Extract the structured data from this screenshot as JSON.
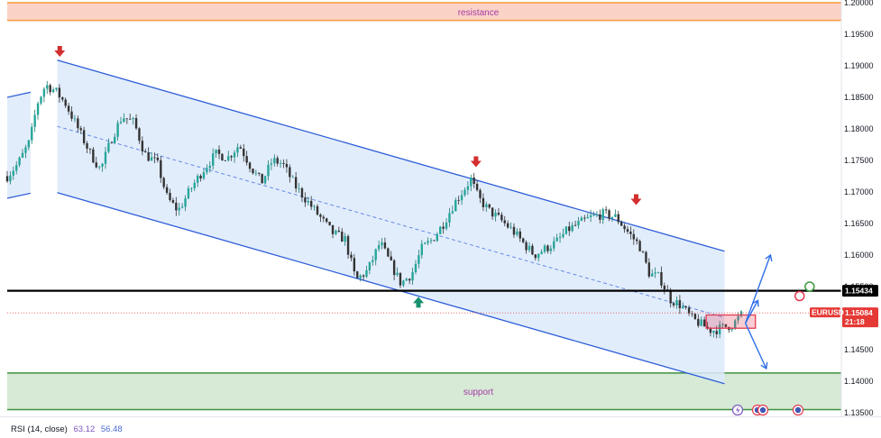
{
  "chart_data": {
    "type": "candlestick",
    "symbol": "EURUSD",
    "price_axis": {
      "min": 1.135,
      "max": 1.2,
      "ticks": [
        "1.20000",
        "1.19500",
        "1.19000",
        "1.18500",
        "1.18000",
        "1.17500",
        "1.17000",
        "1.16500",
        "1.16000",
        "1.15500",
        "1.15000",
        "1.14500",
        "1.14000",
        "1.13500"
      ]
    },
    "zones": [
      {
        "name": "resistance",
        "label": "resistance",
        "from": 1.1972,
        "to": 1.2,
        "color": "#fbd3c6",
        "border": "#f59a3b",
        "text_color": "#a63aa6"
      },
      {
        "name": "support",
        "label": "support",
        "from": 1.1355,
        "to": 1.1413,
        "color": "#d6ead6",
        "border": "#3f8f3f",
        "text_color": "#a63aa6"
      }
    ],
    "horizontal_line": {
      "value": 1.15434,
      "label": "1.15434",
      "color": "#000000"
    },
    "last_price": {
      "symbol": "EURUSD",
      "value": 1.15084,
      "label": "1.15084",
      "countdown": "21:18",
      "color": "#e53935"
    },
    "channel": {
      "upper": {
        "from": [
          0.06,
          1.1909
        ],
        "to": [
          0.86,
          1.1606
        ]
      },
      "lower": {
        "from": [
          0.06,
          1.1699
        ],
        "to": [
          0.86,
          1.1396
        ]
      },
      "fill": "#ddeafb",
      "line_color": "#2f5fd8"
    },
    "price_path": [
      [
        0.0,
        1.1725
      ],
      [
        0.013,
        1.1745
      ],
      [
        0.027,
        1.178
      ],
      [
        0.036,
        1.184
      ],
      [
        0.046,
        1.187
      ],
      [
        0.058,
        1.186
      ],
      [
        0.07,
        1.184
      ],
      [
        0.085,
        1.18
      ],
      [
        0.1,
        1.176
      ],
      [
        0.112,
        1.1735
      ],
      [
        0.125,
        1.1785
      ],
      [
        0.138,
        1.182
      ],
      [
        0.152,
        1.181
      ],
      [
        0.165,
        1.176
      ],
      [
        0.18,
        1.1745
      ],
      [
        0.192,
        1.169
      ],
      [
        0.205,
        1.167
      ],
      [
        0.22,
        1.1705
      ],
      [
        0.235,
        1.1735
      ],
      [
        0.25,
        1.176
      ],
      [
        0.265,
        1.1755
      ],
      [
        0.278,
        1.1775
      ],
      [
        0.292,
        1.174
      ],
      [
        0.305,
        1.1715
      ],
      [
        0.318,
        1.175
      ],
      [
        0.33,
        1.1745
      ],
      [
        0.345,
        1.171
      ],
      [
        0.36,
        1.1685
      ],
      [
        0.375,
        1.166
      ],
      [
        0.39,
        1.1635
      ],
      [
        0.405,
        1.1625
      ],
      [
        0.418,
        1.156
      ],
      [
        0.432,
        1.1575
      ],
      [
        0.447,
        1.162
      ],
      [
        0.46,
        1.1585
      ],
      [
        0.472,
        1.1555
      ],
      [
        0.485,
        1.157
      ],
      [
        0.497,
        1.161
      ],
      [
        0.51,
        1.1625
      ],
      [
        0.523,
        1.165
      ],
      [
        0.535,
        1.168
      ],
      [
        0.548,
        1.1705
      ],
      [
        0.556,
        1.172
      ],
      [
        0.565,
        1.169
      ],
      [
        0.578,
        1.167
      ],
      [
        0.592,
        1.1655
      ],
      [
        0.605,
        1.164
      ],
      [
        0.618,
        1.162
      ],
      [
        0.632,
        1.16
      ],
      [
        0.645,
        1.161
      ],
      [
        0.658,
        1.162
      ],
      [
        0.672,
        1.164
      ],
      [
        0.686,
        1.165
      ],
      [
        0.7,
        1.166
      ],
      [
        0.715,
        1.1665
      ],
      [
        0.73,
        1.166
      ],
      [
        0.745,
        1.1635
      ],
      [
        0.758,
        1.1615
      ],
      [
        0.77,
        1.157
      ],
      [
        0.782,
        1.1565
      ],
      [
        0.795,
        1.153
      ],
      [
        0.808,
        1.152
      ],
      [
        0.82,
        1.15
      ],
      [
        0.832,
        1.149
      ],
      [
        0.845,
        1.148
      ],
      [
        0.858,
        1.1485
      ],
      [
        0.87,
        1.149
      ],
      [
        0.88,
        1.1505
      ]
    ],
    "arrows_down": [
      [
        0.063,
        1.192
      ],
      [
        0.562,
        1.1745
      ],
      [
        0.754,
        1.1685
      ]
    ],
    "arrows_up": [
      [
        0.493,
        1.1528
      ]
    ],
    "consolidation_box": {
      "from": [
        0.838,
        1.1505
      ],
      "to": [
        0.897,
        1.1484
      ],
      "color": "#e53950"
    },
    "projection": {
      "start": [
        0.885,
        1.1492
      ],
      "up_big": [
        0.915,
        1.16
      ],
      "up_small": [
        0.9,
        1.1528
      ],
      "down": [
        0.91,
        1.142
      ],
      "color": "#2f6fe8"
    },
    "circles": [
      {
        "name": "green-target-circle",
        "at": [
          0.962,
          1.155
        ],
        "color": "#3a9a3a"
      },
      {
        "name": "red-marker-circle",
        "at": [
          0.95,
          1.1535
        ],
        "color": "#e53950"
      }
    ]
  },
  "rsi": {
    "label": "RSI (14, close)",
    "value1": "63.12",
    "value2": "56.48"
  },
  "bottom_icons": [
    "lightning-icon",
    "event-icon",
    "flag-icon",
    "flag-icon"
  ]
}
